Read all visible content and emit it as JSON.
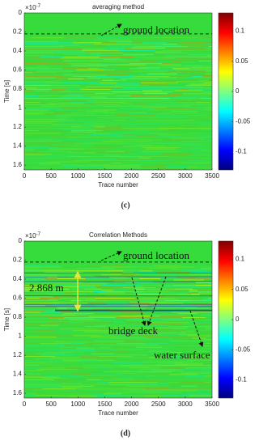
{
  "chart_data": [
    {
      "type": "heatmap",
      "title": "averaging method",
      "xlabel": "Trace number",
      "ylabel": "Time [s]",
      "y_scale": {
        "base": "×10",
        "exponent": "-7"
      },
      "xlim": [
        0,
        3500
      ],
      "xticks": [
        0,
        500,
        1000,
        1500,
        2000,
        2500,
        3000,
        3500
      ],
      "ylim": [
        0,
        1.65
      ],
      "yticks": [
        0,
        0.2,
        0.4,
        0.6,
        0.8,
        1,
        1.2,
        1.4,
        1.6
      ],
      "colormap": "jet",
      "clim": [
        -0.13,
        0.13
      ],
      "cticks": [
        0.1,
        0.05,
        0,
        -0.05,
        -0.1
      ],
      "annotations": [
        "ground location"
      ],
      "panel_label": "(c)"
    },
    {
      "type": "heatmap",
      "title": "Correlation Methods",
      "xlabel": "Trace number",
      "ylabel": "Time [s]",
      "y_scale": {
        "base": "×10",
        "exponent": "-7"
      },
      "xlim": [
        0,
        3500
      ],
      "xticks": [
        0,
        500,
        1000,
        1500,
        2000,
        2500,
        3000,
        3500
      ],
      "ylim": [
        0,
        1.65
      ],
      "yticks": [
        0,
        0.2,
        0.4,
        0.6,
        0.8,
        1,
        1.2,
        1.4,
        1.6
      ],
      "colormap": "jet",
      "clim": [
        -0.13,
        0.13
      ],
      "cticks": [
        0.1,
        0.05,
        0,
        -0.05,
        -0.1
      ],
      "annotations": [
        "ground location",
        "2.868 m",
        "bridge deck",
        "water surface"
      ],
      "panel_label": "(d)"
    }
  ]
}
